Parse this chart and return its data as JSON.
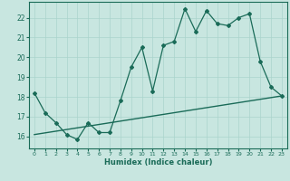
{
  "xlabel": "Humidex (Indice chaleur)",
  "bg_color": "#c8e6e0",
  "line_color": "#1a6b58",
  "xlim": [
    -0.5,
    23.5
  ],
  "ylim": [
    15.4,
    22.8
  ],
  "yticks": [
    16,
    17,
    18,
    19,
    20,
    21,
    22
  ],
  "xticks": [
    0,
    1,
    2,
    3,
    4,
    5,
    6,
    7,
    8,
    9,
    10,
    11,
    12,
    13,
    14,
    15,
    16,
    17,
    18,
    19,
    20,
    21,
    22,
    23
  ],
  "main_x": [
    0,
    1,
    2,
    3,
    4,
    5,
    6,
    7,
    8,
    9,
    10,
    11,
    12,
    13,
    14,
    15,
    16,
    17,
    18,
    19,
    20,
    21,
    22,
    23
  ],
  "main_y": [
    18.2,
    17.2,
    16.7,
    16.1,
    15.85,
    16.7,
    16.2,
    16.2,
    17.8,
    19.5,
    20.5,
    18.3,
    20.6,
    20.8,
    22.45,
    21.3,
    22.35,
    21.7,
    21.6,
    22.0,
    22.2,
    19.8,
    18.5,
    18.05
  ],
  "trend_x": [
    0,
    23
  ],
  "trend_y": [
    16.1,
    18.05
  ],
  "grid_color": "#aad4cc",
  "spine_color": "#1a6b58"
}
